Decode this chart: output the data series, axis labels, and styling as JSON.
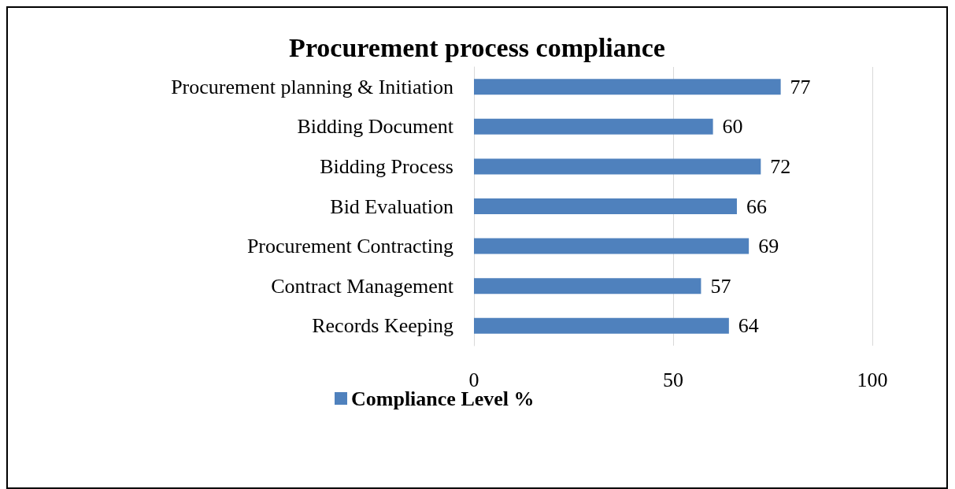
{
  "chart_data": {
    "type": "bar",
    "orientation": "horizontal",
    "title": "Procurement process compliance",
    "categories": [
      "Procurement planning & Initiation",
      "Bidding Document",
      "Bidding Process",
      "Bid Evaluation",
      "Procurement Contracting",
      "Contract Management",
      "Records Keeping"
    ],
    "series": [
      {
        "name": "Compliance Level %",
        "color": "#4f81bd",
        "values": [
          77,
          60,
          72,
          66,
          69,
          57,
          64
        ]
      }
    ],
    "xlim": [
      0,
      100
    ],
    "xticks": [
      0,
      50,
      100
    ],
    "grid": "x",
    "data_labels": true,
    "legend": "bottom"
  }
}
